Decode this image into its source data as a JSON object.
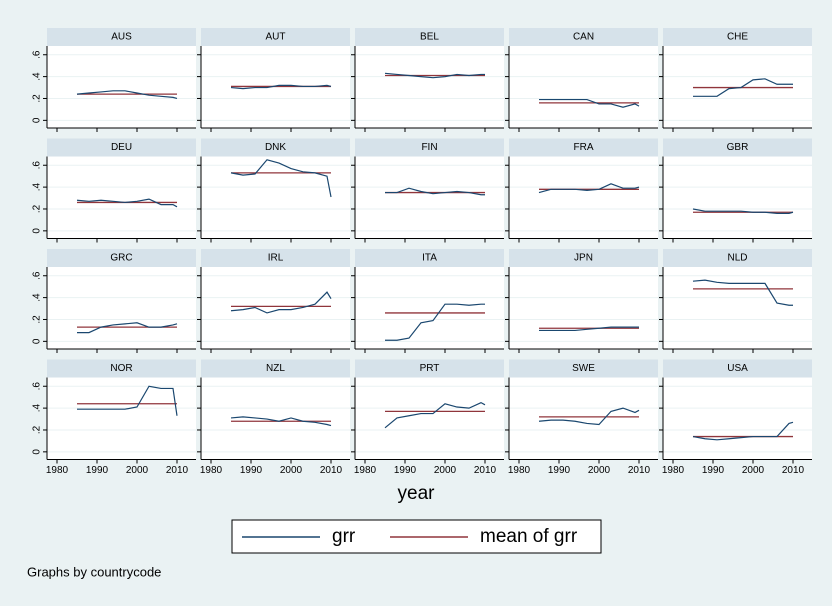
{
  "chart_data": {
    "type": "line",
    "x_label": "year",
    "note": "Graphs by countrycode",
    "x": [
      1985,
      1988,
      1991,
      1994,
      1997,
      2000,
      2003,
      2006,
      2009,
      2010
    ],
    "xlim": [
      1977.5,
      2014.75
    ],
    "xticks": [
      1980,
      1990,
      2000,
      2010
    ],
    "ylim": [
      -0.07,
      0.68
    ],
    "yticks": [
      0,
      {
        "value": 0.2,
        "label": ".2"
      },
      {
        "value": 0.4,
        "label": ".4"
      },
      {
        "value": 0.6,
        "label": ".6"
      }
    ],
    "grid": true,
    "series": [
      {
        "name": "grr",
        "color": "#1a476f"
      },
      {
        "name": "mean of grr",
        "color": "#90353b"
      }
    ],
    "panels": [
      {
        "title": "AUS",
        "values": [
          0.24,
          0.25,
          0.26,
          0.27,
          0.27,
          0.25,
          0.23,
          0.22,
          0.21,
          0.2
        ],
        "mean": 0.24
      },
      {
        "title": "AUT",
        "values": [
          0.3,
          0.29,
          0.3,
          0.3,
          0.32,
          0.32,
          0.31,
          0.31,
          0.32,
          0.31
        ],
        "mean": 0.31
      },
      {
        "title": "BEL",
        "values": [
          0.43,
          0.42,
          0.41,
          0.4,
          0.39,
          0.4,
          0.42,
          0.41,
          0.42,
          0.42
        ],
        "mean": 0.41
      },
      {
        "title": "CAN",
        "values": [
          0.19,
          0.19,
          0.19,
          0.19,
          0.19,
          0.15,
          0.15,
          0.12,
          0.15,
          0.13
        ],
        "mean": 0.16
      },
      {
        "title": "CHE",
        "values": [
          0.22,
          0.22,
          0.22,
          0.29,
          0.3,
          0.37,
          0.38,
          0.33,
          0.33,
          0.33
        ],
        "mean": 0.3
      },
      {
        "title": "DEU",
        "values": [
          0.28,
          0.27,
          0.28,
          0.27,
          0.26,
          0.27,
          0.29,
          0.24,
          0.24,
          0.22
        ],
        "mean": 0.26
      },
      {
        "title": "DNK",
        "values": [
          0.53,
          0.51,
          0.52,
          0.65,
          0.62,
          0.57,
          0.54,
          0.53,
          0.5,
          0.31
        ],
        "mean": 0.53
      },
      {
        "title": "FIN",
        "values": [
          0.35,
          0.35,
          0.39,
          0.36,
          0.34,
          0.35,
          0.36,
          0.35,
          0.33,
          0.33
        ],
        "mean": 0.35
      },
      {
        "title": "FRA",
        "values": [
          0.35,
          0.38,
          0.38,
          0.38,
          0.37,
          0.38,
          0.43,
          0.39,
          0.39,
          0.4
        ],
        "mean": 0.38
      },
      {
        "title": "GBR",
        "values": [
          0.2,
          0.18,
          0.18,
          0.18,
          0.18,
          0.17,
          0.17,
          0.16,
          0.16,
          0.17
        ],
        "mean": 0.17
      },
      {
        "title": "GRC",
        "values": [
          0.08,
          0.08,
          0.13,
          0.15,
          0.16,
          0.17,
          0.13,
          0.13,
          0.15,
          0.16
        ],
        "mean": 0.13
      },
      {
        "title": "IRL",
        "values": [
          0.28,
          0.29,
          0.31,
          0.26,
          0.29,
          0.29,
          0.31,
          0.34,
          0.45,
          0.39
        ],
        "mean": 0.32
      },
      {
        "title": "ITA",
        "values": [
          0.01,
          0.01,
          0.03,
          0.17,
          0.19,
          0.34,
          0.34,
          0.33,
          0.34,
          0.34
        ],
        "mean": 0.26
      },
      {
        "title": "JPN",
        "values": [
          0.1,
          0.1,
          0.1,
          0.1,
          0.11,
          0.12,
          0.13,
          0.13,
          0.13,
          0.13
        ],
        "mean": 0.12
      },
      {
        "title": "NLD",
        "values": [
          0.55,
          0.56,
          0.54,
          0.53,
          0.53,
          0.53,
          0.53,
          0.35,
          0.33,
          0.33
        ],
        "mean": 0.48
      },
      {
        "title": "NOR",
        "values": [
          0.39,
          0.39,
          0.39,
          0.39,
          0.39,
          0.41,
          0.6,
          0.58,
          0.58,
          0.33
        ],
        "mean": 0.44
      },
      {
        "title": "NZL",
        "values": [
          0.31,
          0.32,
          0.31,
          0.3,
          0.28,
          0.31,
          0.28,
          0.27,
          0.25,
          0.24
        ],
        "mean": 0.28
      },
      {
        "title": "PRT",
        "values": [
          0.22,
          0.31,
          0.33,
          0.35,
          0.35,
          0.44,
          0.41,
          0.4,
          0.45,
          0.43
        ],
        "mean": 0.37
      },
      {
        "title": "SWE",
        "values": [
          0.28,
          0.29,
          0.29,
          0.28,
          0.26,
          0.25,
          0.37,
          0.4,
          0.36,
          0.38
        ],
        "mean": 0.32
      },
      {
        "title": "USA",
        "values": [
          0.14,
          0.12,
          0.11,
          0.12,
          0.13,
          0.14,
          0.14,
          0.14,
          0.26,
          0.27
        ],
        "mean": 0.14
      }
    ]
  }
}
